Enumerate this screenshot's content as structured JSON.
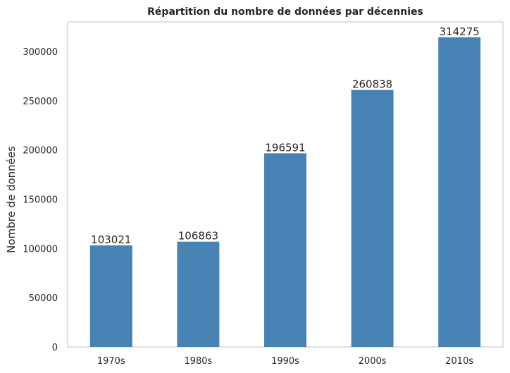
{
  "chart_data": {
    "type": "bar",
    "title": "Répartition du nombre de données par décennies",
    "xlabel": "",
    "ylabel": "Nombre de données",
    "categories": [
      "1970s",
      "1980s",
      "1990s",
      "2000s",
      "2010s"
    ],
    "values": [
      103021,
      106863,
      196591,
      260838,
      314275
    ],
    "data_labels": [
      "103021",
      "106863",
      "196591",
      "260838",
      "314275"
    ],
    "ylim": [
      0,
      330000
    ],
    "yticks": [
      0,
      50000,
      100000,
      150000,
      200000,
      250000,
      300000
    ],
    "ytick_labels": [
      "0",
      "50000",
      "100000",
      "150000",
      "200000",
      "250000",
      "300000"
    ],
    "grid": false,
    "bar_color": "#4682b4",
    "axes_color": "#cccccc"
  }
}
